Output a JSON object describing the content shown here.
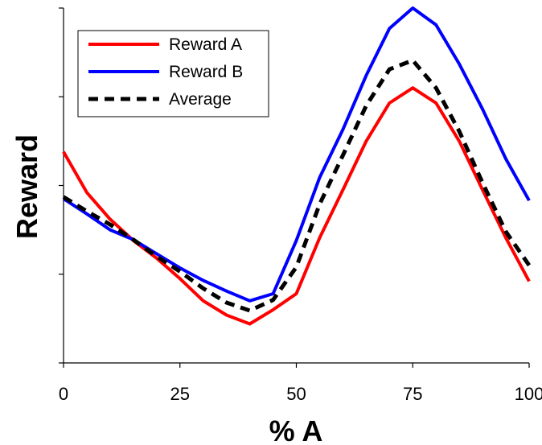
{
  "chart_data": {
    "type": "line",
    "title": "",
    "xlabel": "% A",
    "ylabel": "Reward",
    "xlim": [
      0,
      100
    ],
    "ylim": [
      0,
      4
    ],
    "x_ticks": [
      0,
      25,
      50,
      75,
      100
    ],
    "x_tick_labels": [
      "0",
      "25",
      "50",
      "75",
      "100"
    ],
    "y_ticks": [
      0,
      1,
      2,
      3,
      4
    ],
    "y_tick_labels_visible": false,
    "grid": false,
    "legend_position": "top-left",
    "x": [
      0,
      5,
      10,
      15,
      20,
      25,
      30,
      35,
      40,
      45,
      50,
      55,
      60,
      65,
      70,
      75,
      80,
      85,
      90,
      95,
      100
    ],
    "series": [
      {
        "name": "Reward A",
        "color": "#ff0000",
        "dash": "solid",
        "values": [
          2.38,
          1.92,
          1.62,
          1.38,
          1.18,
          0.95,
          0.7,
          0.54,
          0.44,
          0.6,
          0.78,
          1.41,
          1.95,
          2.5,
          2.93,
          3.1,
          2.93,
          2.5,
          1.95,
          1.41,
          0.92
        ]
      },
      {
        "name": "Reward B",
        "color": "#0000ff",
        "dash": "solid",
        "values": [
          1.85,
          1.68,
          1.5,
          1.39,
          1.23,
          1.07,
          0.93,
          0.81,
          0.7,
          0.78,
          1.38,
          2.09,
          2.63,
          3.24,
          3.77,
          4.0,
          3.81,
          3.37,
          2.86,
          2.3,
          1.83
        ]
      },
      {
        "name": "Average",
        "color": "#000000",
        "dash": "dashed",
        "values": [
          1.87,
          1.71,
          1.56,
          1.39,
          1.2,
          1.03,
          0.84,
          0.68,
          0.59,
          0.71,
          1.08,
          1.79,
          2.34,
          2.9,
          3.31,
          3.41,
          3.1,
          2.61,
          2.03,
          1.48,
          1.1
        ]
      }
    ]
  }
}
